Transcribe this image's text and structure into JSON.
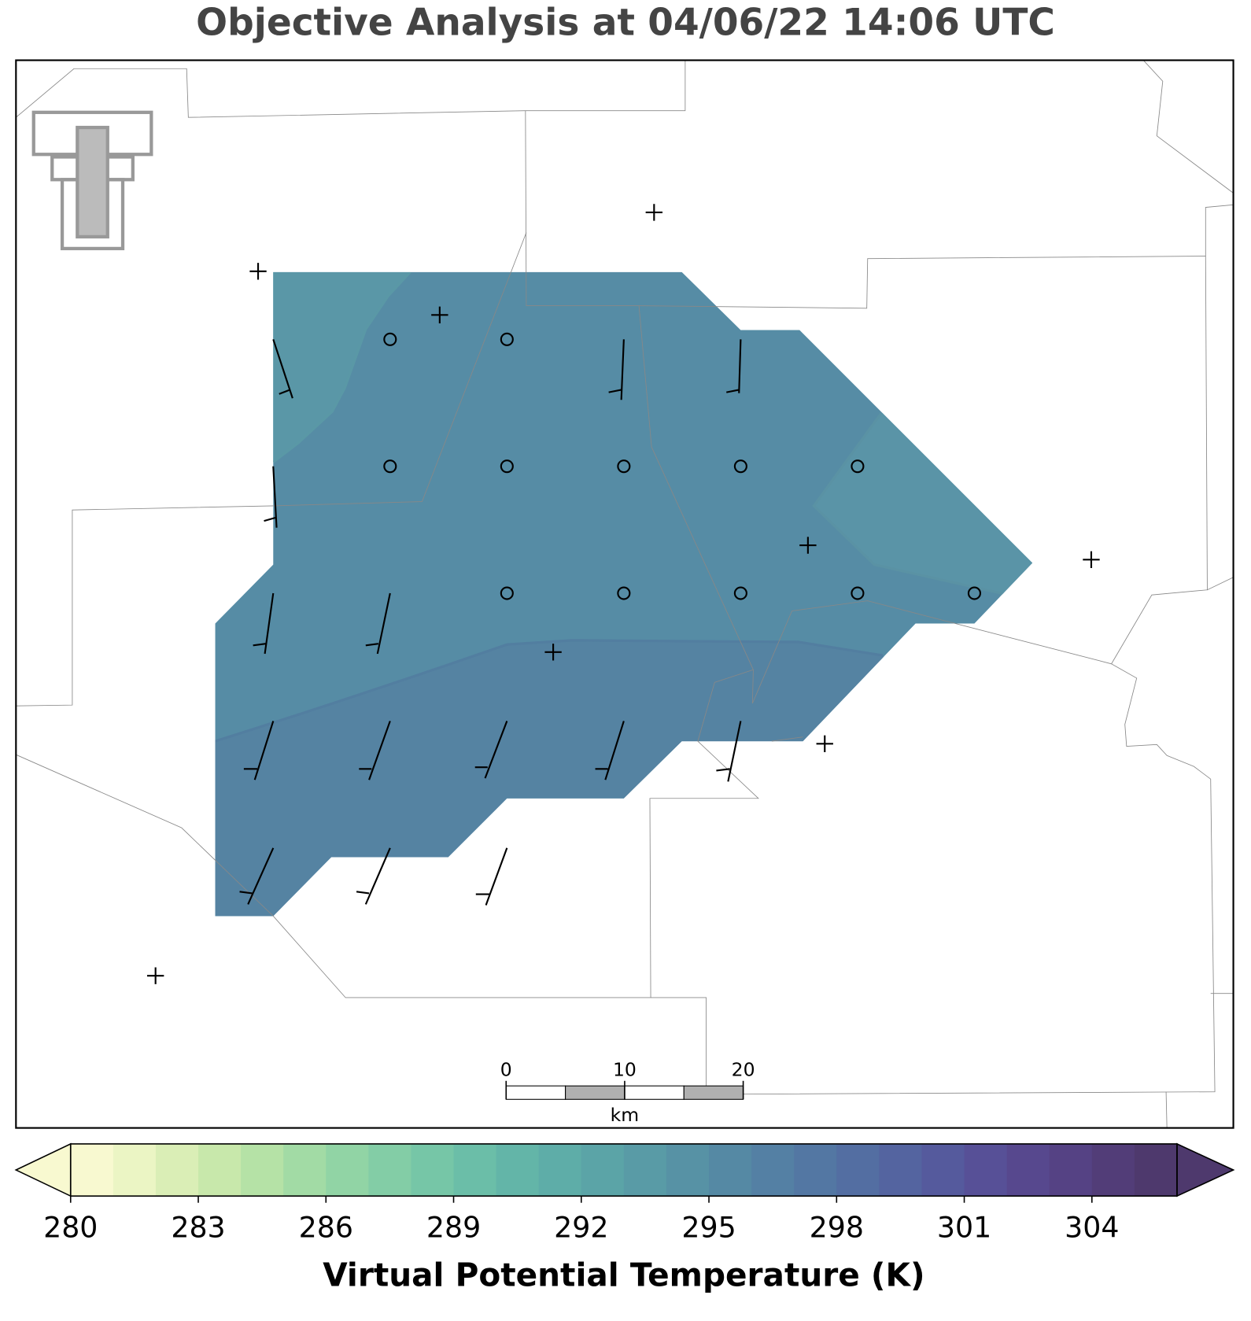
{
  "title": "Objective Analysis at 04/06/22 14:06 UTC",
  "colorbar": {
    "label": "Virtual Potential Temperature (K)",
    "clim": [
      280,
      306
    ],
    "ticks": [
      280,
      283,
      286,
      289,
      292,
      295,
      298,
      301,
      304
    ],
    "colors": [
      "#f8f9d0",
      "#ebf5c4",
      "#daeeb6",
      "#c8e8ab",
      "#b5e2a6",
      "#a2dba5",
      "#91d4a5",
      "#83cda6",
      "#76c6a7",
      "#6bbea8",
      "#63b5a8",
      "#5ead a8",
      "#5ba4a7",
      "#599ba6",
      "#5792a5",
      "#5589a4",
      "#5480a4",
      "#5377a3",
      "#536ea2",
      "#5464a0",
      "#555a9d",
      "#575097",
      "#57488e",
      "#554284",
      "#523d78",
      "#4e396d"
    ]
  },
  "scale_bar": {
    "ticks": [
      0,
      10,
      20
    ],
    "unit": "km"
  }
}
